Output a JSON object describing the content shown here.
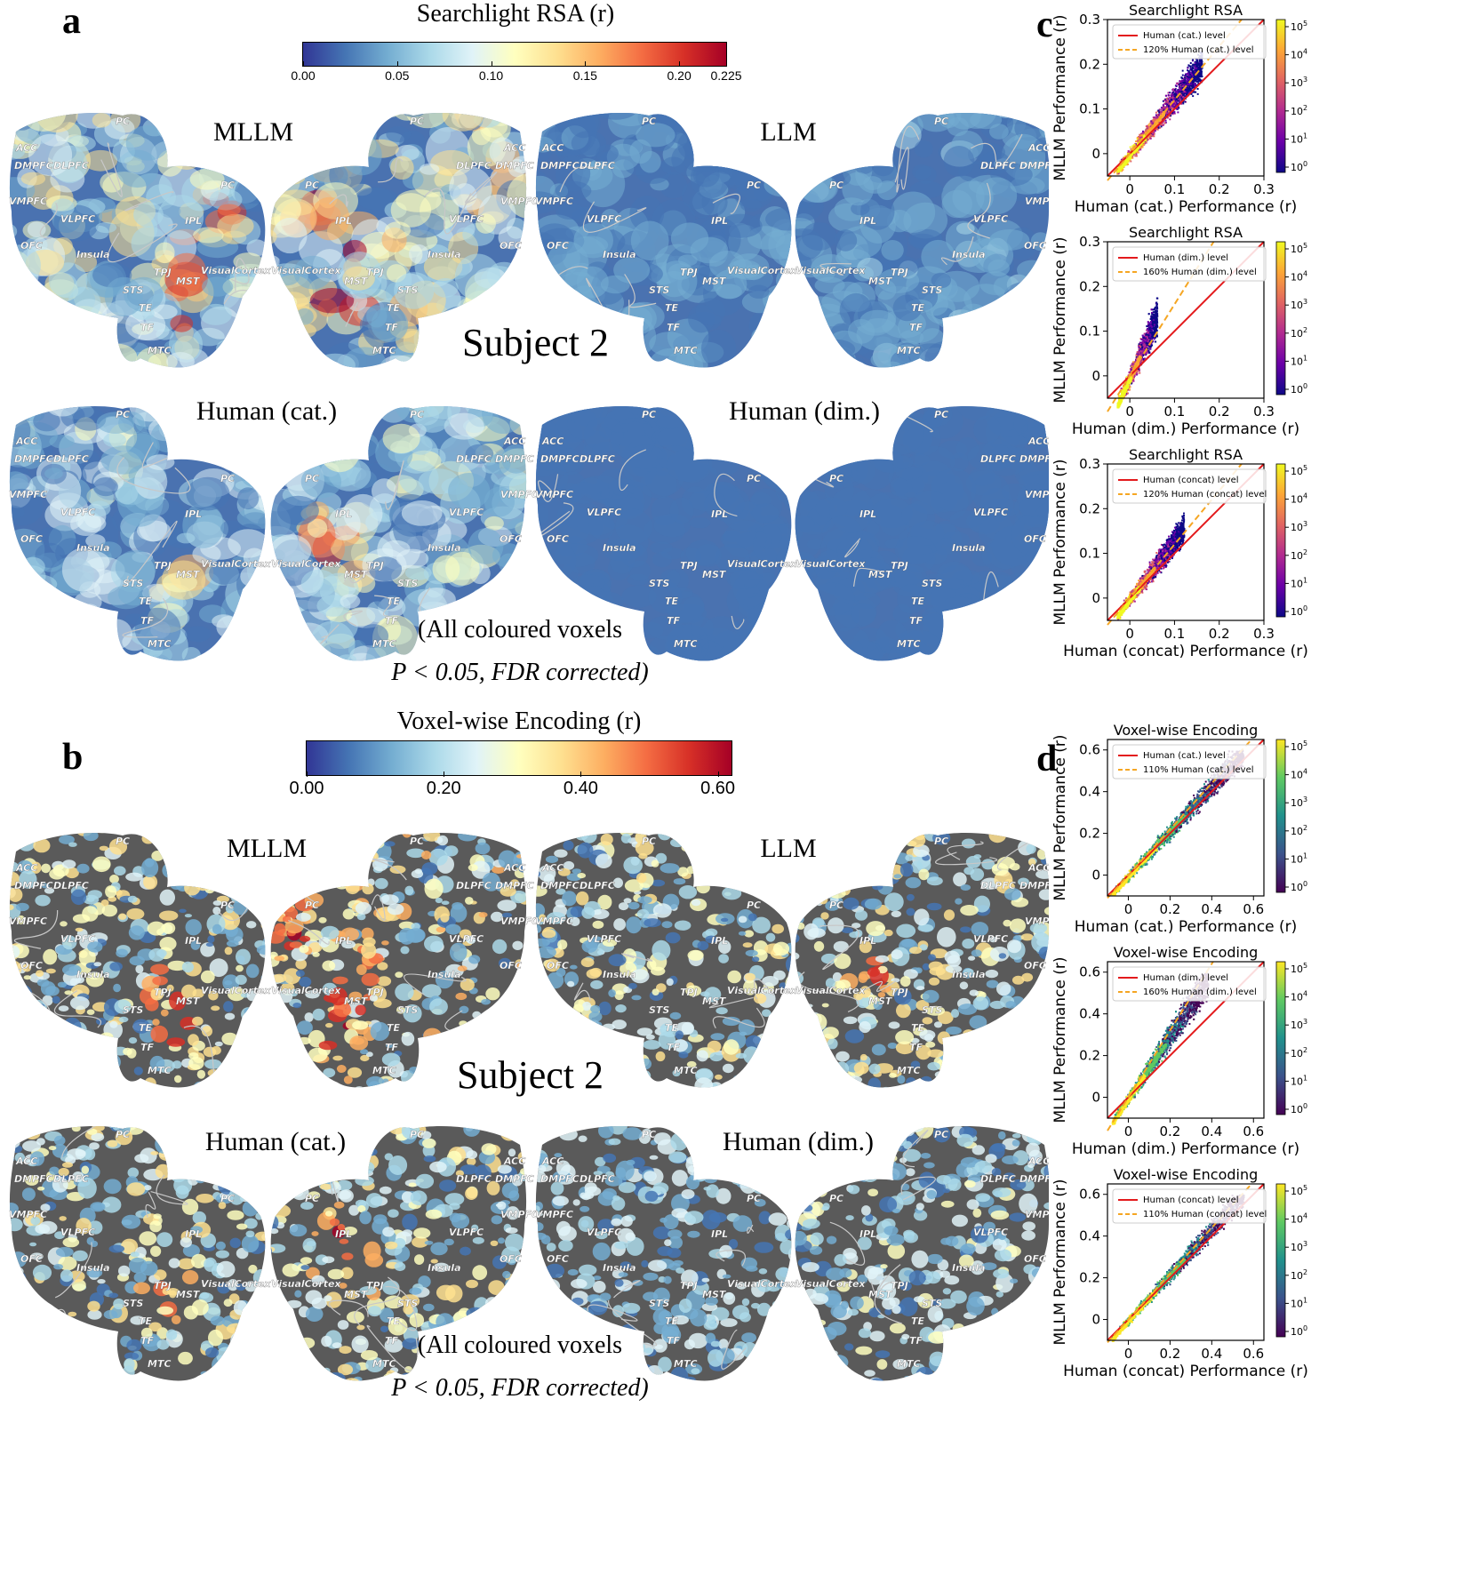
{
  "panels": {
    "a": {
      "letter": "a",
      "colorbar": {
        "title": "Searchlight RSA (r)",
        "ticks": [
          "0.00",
          "0.05",
          "0.10",
          "0.15",
          "0.20",
          "0.225"
        ],
        "tick_values": [
          0.0,
          0.05,
          0.1,
          0.15,
          0.2,
          0.225
        ],
        "vmin": 0.0,
        "vmax": 0.225
      },
      "labels": {
        "mllm": "MLLM",
        "llm": "LLM",
        "human_cat": "Human (cat.)",
        "human_dim": "Human (dim.)"
      },
      "subject": "Subject 2",
      "note_line1": "(All coloured voxels",
      "note_line2": "P < 0.05, FDR corrected)"
    },
    "b": {
      "letter": "b",
      "colorbar": {
        "title": "Voxel-wise Encoding (r)",
        "ticks": [
          "0.00",
          "0.20",
          "0.40",
          "0.60"
        ],
        "tick_values": [
          0.0,
          0.2,
          0.4,
          0.6
        ],
        "vmin": 0.0,
        "vmax": 0.62
      },
      "labels": {
        "mllm": "MLLM",
        "llm": "LLM",
        "human_cat": "Human (cat.)",
        "human_dim": "Human (dim.)"
      },
      "subject": "Subject 2",
      "note_line1": "(All coloured voxels",
      "note_line2": "P < 0.05, FDR corrected)"
    },
    "c": {
      "letter": "c"
    },
    "d": {
      "letter": "d"
    }
  },
  "roi_labels_left": [
    "PC",
    "ACC",
    "DMPFC",
    "DLPFC",
    "VMPFC",
    "VLPFC",
    "OFC",
    "PC",
    "IPL",
    "Insula",
    "TPJ",
    "MST",
    "STS",
    "TE",
    "TF",
    "MTC",
    "VisualCortex"
  ],
  "roi_labels_right": [
    "PC",
    "ACC",
    "DMPFC",
    "DLPFC",
    "VMPFC",
    "VLPFC",
    "OFC",
    "PC",
    "IPL",
    "Insula",
    "TPJ",
    "MST",
    "STS",
    "TE",
    "TF",
    "MTC",
    "VisualCortex"
  ],
  "colors": {
    "cmap_rdylbu": [
      "#313695",
      "#4575b4",
      "#74add1",
      "#abd9e9",
      "#e0f3f8",
      "#ffffbf",
      "#fee090",
      "#fdae61",
      "#f46d43",
      "#d73027",
      "#a50026"
    ],
    "plasma": [
      "#0d0887",
      "#6a00a8",
      "#b12a90",
      "#e16462",
      "#fca636",
      "#f0f921"
    ],
    "viridis": [
      "#440154",
      "#3b528b",
      "#21918c",
      "#5ec962",
      "#fde725"
    ],
    "human_line": "#e31a1c",
    "scaled_line": "#f5a623"
  },
  "chart_data": [
    {
      "type": "scatter",
      "panel": "c",
      "cmap": "plasma",
      "title": "Searchlight RSA",
      "xlabel": "Human (cat.) Performance (r)",
      "ylabel": "MLLM Performance (r)",
      "xlim": [
        -0.05,
        0.3
      ],
      "ylim": [
        -0.05,
        0.3
      ],
      "xticks": [
        "0",
        "0.1",
        "0.2",
        "0.3"
      ],
      "yticks": [
        "0",
        "0.1",
        "0.2",
        "0.3"
      ],
      "legend": [
        "Human (cat.) level",
        "120% Human (cat.) level"
      ],
      "scale": 1.2,
      "cloud": {
        "x_range": [
          -0.03,
          0.16
        ],
        "slope": 1.25,
        "spread": 0.045,
        "y_max": 0.23
      },
      "colorbar_ticks": [
        "10^5",
        "10^4",
        "10^3",
        "10^2",
        "10^1",
        "10^0"
      ]
    },
    {
      "type": "scatter",
      "panel": "c",
      "cmap": "plasma",
      "title": "Searchlight RSA",
      "xlabel": "Human (dim.) Performance (r)",
      "ylabel": "MLLM Performance (r)",
      "xlim": [
        -0.05,
        0.3
      ],
      "ylim": [
        -0.05,
        0.3
      ],
      "xticks": [
        "0",
        "0.1",
        "0.2",
        "0.3"
      ],
      "yticks": [
        "0",
        "0.1",
        "0.2",
        "0.3"
      ],
      "legend": [
        "Human (dim.) level",
        "160% Human (dim.) level"
      ],
      "scale": 1.6,
      "cloud": {
        "x_range": [
          -0.03,
          0.06
        ],
        "slope": 2.2,
        "spread": 0.05,
        "y_max": 0.22
      },
      "colorbar_ticks": [
        "10^5",
        "10^4",
        "10^3",
        "10^2",
        "10^1",
        "10^0"
      ]
    },
    {
      "type": "scatter",
      "panel": "c",
      "cmap": "plasma",
      "title": "Searchlight RSA",
      "xlabel": "Human (concat) Performance (r)",
      "ylabel": "MLLM Performance (r)",
      "xlim": [
        -0.05,
        0.3
      ],
      "ylim": [
        -0.05,
        0.3
      ],
      "xticks": [
        "0",
        "0.1",
        "0.2",
        "0.3"
      ],
      "yticks": [
        "0",
        "0.1",
        "0.2",
        "0.3"
      ],
      "legend": [
        "Human (concat) level",
        "120% Human (concat) level"
      ],
      "scale": 1.2,
      "cloud": {
        "x_range": [
          -0.03,
          0.12
        ],
        "slope": 1.3,
        "spread": 0.04,
        "y_max": 0.21
      },
      "colorbar_ticks": [
        "10^5",
        "10^4",
        "10^3",
        "10^2",
        "10^1",
        "10^0"
      ]
    },
    {
      "type": "scatter",
      "panel": "d",
      "cmap": "viridis",
      "title": "Voxel-wise Encoding",
      "xlabel": "Human (cat.) Performance (r)",
      "ylabel": "MLLM Performance (r)",
      "xlim": [
        -0.1,
        0.65
      ],
      "ylim": [
        -0.1,
        0.65
      ],
      "xticks": [
        "0",
        "0.2",
        "0.4",
        "0.6"
      ],
      "yticks": [
        "0",
        "0.2",
        "0.4",
        "0.6"
      ],
      "legend": [
        "Human (cat.) level",
        "110% Human (cat.) level"
      ],
      "scale": 1.1,
      "cloud": {
        "x_range": [
          -0.08,
          0.55
        ],
        "slope": 1.08,
        "spread": 0.08,
        "y_max": 0.6
      },
      "colorbar_ticks": [
        "10^5",
        "10^4",
        "10^3",
        "10^2",
        "10^1",
        "10^0"
      ]
    },
    {
      "type": "scatter",
      "panel": "d",
      "cmap": "viridis",
      "title": "Voxel-wise Encoding",
      "xlabel": "Human (dim.) Performance (r)",
      "ylabel": "MLLM Performance (r)",
      "xlim": [
        -0.1,
        0.65
      ],
      "ylim": [
        -0.1,
        0.65
      ],
      "xticks": [
        "0",
        "0.2",
        "0.4",
        "0.6"
      ],
      "yticks": [
        "0",
        "0.2",
        "0.4",
        "0.6"
      ],
      "legend": [
        "Human (dim.) level",
        "160% Human (dim.) level"
      ],
      "scale": 1.6,
      "cloud": {
        "x_range": [
          -0.08,
          0.38
        ],
        "slope": 1.5,
        "spread": 0.1,
        "y_max": 0.6
      },
      "colorbar_ticks": [
        "10^5",
        "10^4",
        "10^3",
        "10^2",
        "10^1",
        "10^0"
      ]
    },
    {
      "type": "scatter",
      "panel": "d",
      "cmap": "viridis",
      "title": "Voxel-wise Encoding",
      "xlabel": "Human (concat) Performance (r)",
      "ylabel": "MLLM Performance (r)",
      "xlim": [
        -0.1,
        0.65
      ],
      "ylim": [
        -0.1,
        0.65
      ],
      "xticks": [
        "0",
        "0.2",
        "0.4",
        "0.6"
      ],
      "yticks": [
        "0",
        "0.2",
        "0.4",
        "0.6"
      ],
      "legend": [
        "Human (concat) level",
        "110% Human (concat) level"
      ],
      "scale": 1.1,
      "cloud": {
        "x_range": [
          -0.08,
          0.55
        ],
        "slope": 1.1,
        "spread": 0.07,
        "y_max": 0.6
      },
      "colorbar_ticks": [
        "10^5",
        "10^4",
        "10^3",
        "10^2",
        "10^1",
        "10^0"
      ]
    }
  ]
}
